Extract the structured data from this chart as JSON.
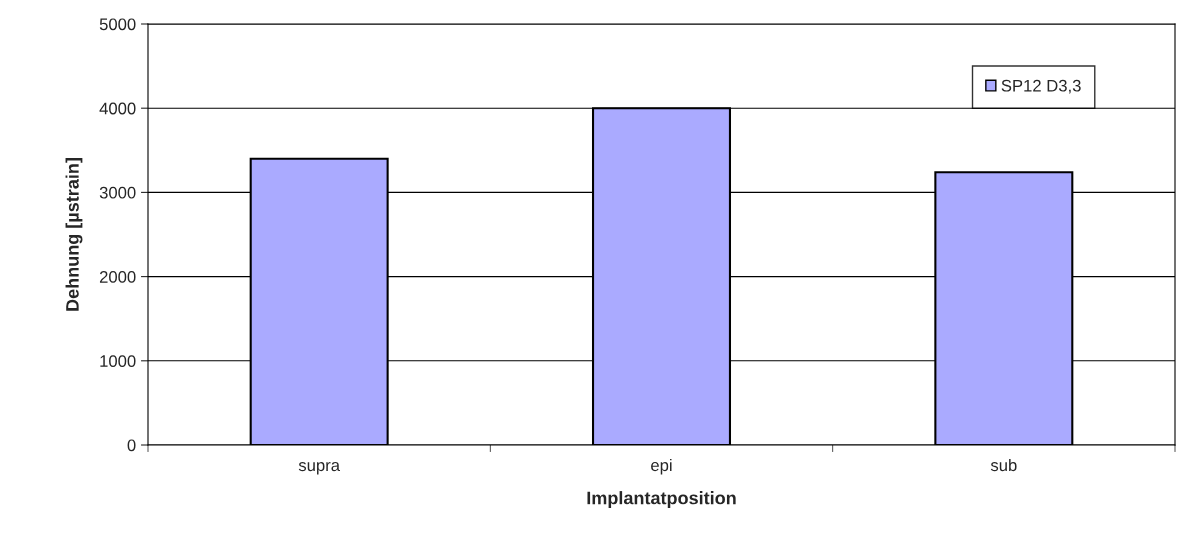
{
  "chart_data": {
    "type": "bar",
    "xlabel": "Implantatposition",
    "ylabel": "Dehnung [µstrain]",
    "categories": [
      "supra",
      "epi",
      "sub"
    ],
    "series": [
      {
        "name": "SP12 D3,3",
        "color": "#aaaaff",
        "values": [
          3400,
          4000,
          3240
        ]
      }
    ],
    "ylim": [
      0,
      5000
    ],
    "yticks": [
      0,
      1000,
      2000,
      3000,
      4000,
      5000
    ],
    "grid": "y",
    "legend": "top right"
  }
}
